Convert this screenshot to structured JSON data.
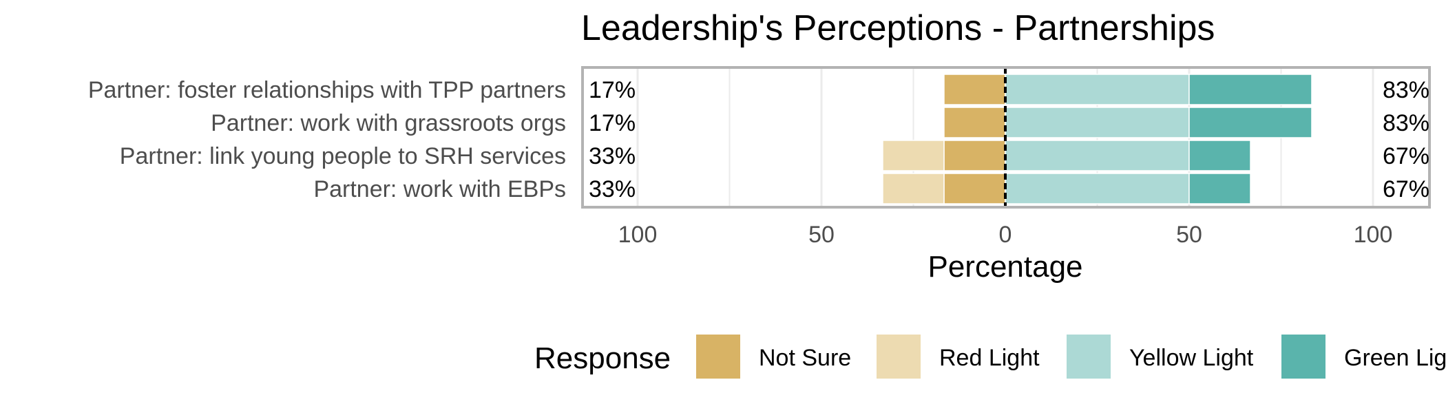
{
  "chart_data": {
    "type": "bar",
    "orientation": "horizontal",
    "stacked": "diverging",
    "title": "Leadership's Perceptions - Partnerships",
    "xlabel": "Percentage",
    "ylabel": "",
    "xlim": [
      -100,
      100
    ],
    "x_ticks": [
      -100,
      -50,
      0,
      50,
      100
    ],
    "x_tick_labels": [
      "100",
      "50",
      "0",
      "50",
      "100"
    ],
    "grid": true,
    "legend_position": "bottom",
    "legend_title": "Response",
    "categories": [
      "Partner: foster relationships with TPP partners",
      "Partner: work with grassroots orgs",
      "Partner: link young people to SRH services",
      "Partner: work with EBPs"
    ],
    "series": [
      {
        "name": "Not Sure",
        "side": "negative",
        "color": "#D8B365",
        "values": [
          16.67,
          16.67,
          16.67,
          16.67
        ]
      },
      {
        "name": "Red Light",
        "side": "negative",
        "color": "#EDDBB1",
        "values": [
          0,
          0,
          16.67,
          16.67
        ]
      },
      {
        "name": "Yellow Light",
        "side": "positive",
        "color": "#ACD9D5",
        "values": [
          50,
          50,
          50,
          50
        ]
      },
      {
        "name": "Green Light",
        "side": "positive",
        "color": "#5AB4AC",
        "values": [
          33.33,
          33.33,
          16.67,
          16.67
        ]
      }
    ],
    "left_labels": [
      "17%",
      "17%",
      "33%",
      "33%"
    ],
    "right_labels": [
      "83%",
      "83%",
      "67%",
      "67%"
    ]
  }
}
